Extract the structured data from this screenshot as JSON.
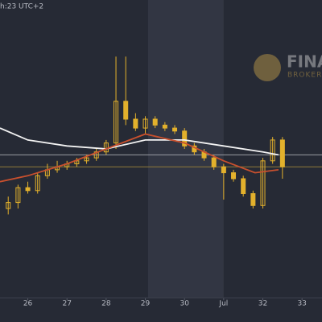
{
  "chart_data": {
    "type": "candlestick",
    "header": "h:23 UTC+2",
    "watermark": {
      "title": "FINA",
      "subtitle": "BROKERA"
    },
    "color": "#e3b12c",
    "x": [
      25.5,
      25.75,
      26.0,
      26.25,
      26.5,
      26.75,
      27.0,
      27.25,
      27.5,
      27.75,
      28.0,
      28.25,
      28.5,
      28.75,
      29.0,
      29.25,
      29.5,
      29.75,
      30.0,
      30.25,
      30.5,
      30.75,
      31.0,
      31.25,
      31.5,
      31.75,
      32.0,
      32.25,
      32.5
    ],
    "open": [
      30,
      32,
      37,
      36,
      41,
      43,
      44,
      45,
      46,
      47,
      49,
      52,
      66,
      60,
      57,
      60,
      58,
      57,
      56,
      51,
      49,
      47,
      44,
      42,
      40,
      35,
      31,
      46,
      53
    ],
    "high": [
      34,
      38,
      39,
      42,
      45,
      46,
      46,
      47,
      48,
      50,
      53,
      81,
      81,
      62,
      61,
      61,
      59,
      58,
      57,
      52,
      50,
      48,
      45,
      43,
      41,
      36,
      47,
      54,
      54
    ],
    "low": [
      28,
      30,
      35,
      35,
      40,
      42,
      43,
      44,
      45,
      46,
      48,
      50,
      58,
      56,
      55,
      57,
      56,
      55,
      50,
      48,
      46,
      43,
      33,
      39,
      34,
      30,
      30,
      45,
      40
    ],
    "close": [
      32,
      37,
      36,
      41,
      43,
      44,
      45,
      46,
      47,
      49,
      52,
      66,
      60,
      57,
      60,
      58,
      57,
      56,
      51,
      49,
      47,
      44,
      42,
      40,
      35,
      31,
      46,
      53,
      44
    ],
    "lines": [
      {
        "color": "#f2f2f2",
        "x": [
          25.29,
          26,
          27,
          28,
          29,
          30,
          31,
          32,
          32.4
        ],
        "values": [
          57,
          53,
          51,
          50,
          53,
          53,
          51,
          49,
          48
        ]
      },
      {
        "color": "#c8502e",
        "x": [
          25.29,
          26,
          27,
          28,
          29,
          30,
          31,
          31.8,
          32.4
        ],
        "values": [
          39,
          41,
          45,
          50,
          55,
          52,
          46,
          42,
          43
        ]
      }
    ],
    "levels": [
      {
        "value": 48,
        "color": "#9a9ca3"
      },
      {
        "value": 44,
        "color": "#8f7a3a"
      }
    ],
    "shaded_range": [
      29.07,
      31.0
    ],
    "xlim": [
      25.29,
      33.51
    ],
    "ylim": [
      0,
      100
    ],
    "xticks": [
      26,
      27,
      28,
      29,
      30,
      {
        "value": 31,
        "label": "Jul"
      },
      32,
      33
    ]
  }
}
